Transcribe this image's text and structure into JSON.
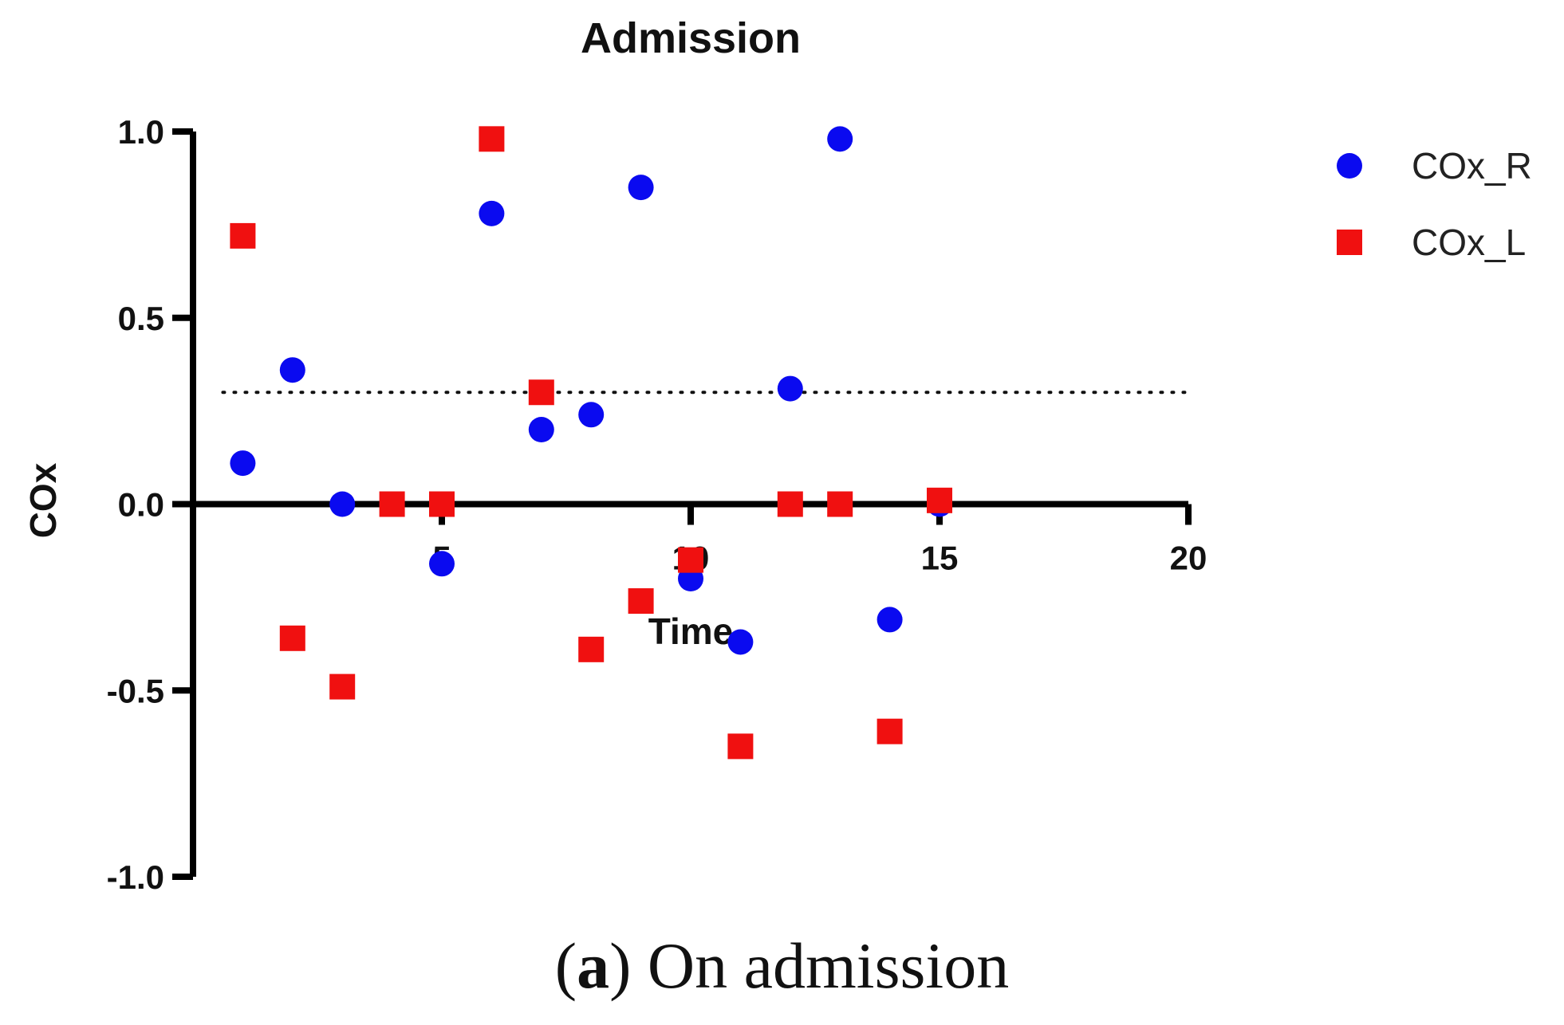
{
  "caption": {
    "letter": "a",
    "text": "On admission"
  },
  "chart_data": {
    "type": "scatter",
    "title": "Admission",
    "xlabel": "Time",
    "ylabel": "COx",
    "xlim": [
      0,
      20
    ],
    "ylim": [
      -1.0,
      1.0
    ],
    "x_ticks": [
      5,
      10,
      15,
      20
    ],
    "y_ticks": [
      1.0,
      0.5,
      0.0,
      -0.5,
      -1.0
    ],
    "x_tick_labels": [
      "5",
      "10",
      "15",
      "20"
    ],
    "y_tick_labels": [
      "1.0",
      "0.5",
      "0.0",
      "-0.5",
      "-1.0"
    ],
    "reference_line": {
      "y": 0.3,
      "style": "dotted"
    },
    "legend_position": "top-right",
    "series": [
      {
        "name": "COx_R",
        "marker": "circle",
        "color": "#0a0af0",
        "points": [
          [
            1,
            0.11
          ],
          [
            2,
            0.36
          ],
          [
            3,
            0.0
          ],
          [
            4,
            0.0
          ],
          [
            5,
            -0.16
          ],
          [
            6,
            0.78
          ],
          [
            7,
            0.2
          ],
          [
            8,
            0.24
          ],
          [
            9,
            0.85
          ],
          [
            10,
            -0.2
          ],
          [
            11,
            -0.37
          ],
          [
            12,
            0.31
          ],
          [
            13,
            0.98
          ],
          [
            14,
            -0.31
          ],
          [
            15,
            0.0
          ]
        ]
      },
      {
        "name": "COx_L",
        "marker": "square",
        "color": "#f01010",
        "points": [
          [
            1,
            0.72
          ],
          [
            2,
            -0.36
          ],
          [
            3,
            -0.49
          ],
          [
            4,
            0.0
          ],
          [
            5,
            0.0
          ],
          [
            6,
            0.98
          ],
          [
            7,
            0.3
          ],
          [
            8,
            -0.39
          ],
          [
            9,
            -0.26
          ],
          [
            10,
            -0.15
          ],
          [
            11,
            -0.65
          ],
          [
            12,
            0.0
          ],
          [
            13,
            0.0
          ],
          [
            14,
            -0.61
          ],
          [
            15,
            0.01
          ]
        ]
      }
    ]
  }
}
